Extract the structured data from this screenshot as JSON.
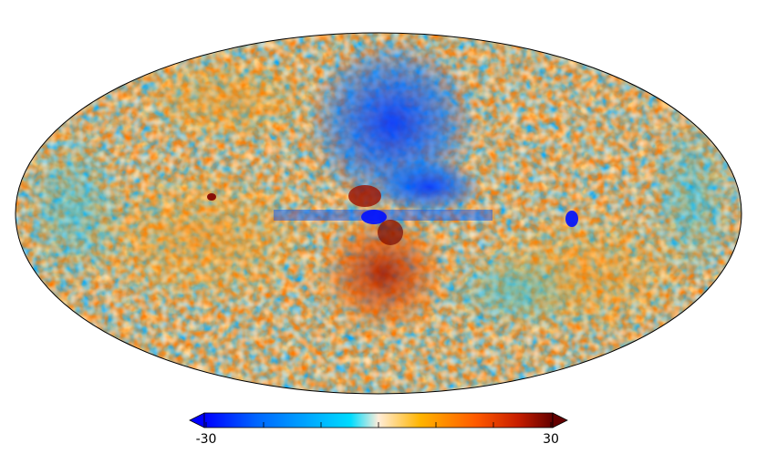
{
  "colorbar": {
    "min_label": "-30",
    "max_label": "30",
    "range": [
      -30,
      30
    ],
    "tick_values": [
      -30,
      -20,
      -10,
      0,
      10,
      20,
      30
    ],
    "colormap": [
      "#0000ff",
      "#0066ff",
      "#00a8ff",
      "#00dcff",
      "#ffedd9",
      "#ffb400",
      "#ff5a00",
      "#c81e00",
      "#640000"
    ]
  },
  "map": {
    "projection": "mollweide",
    "outline_color": "#000000"
  }
}
